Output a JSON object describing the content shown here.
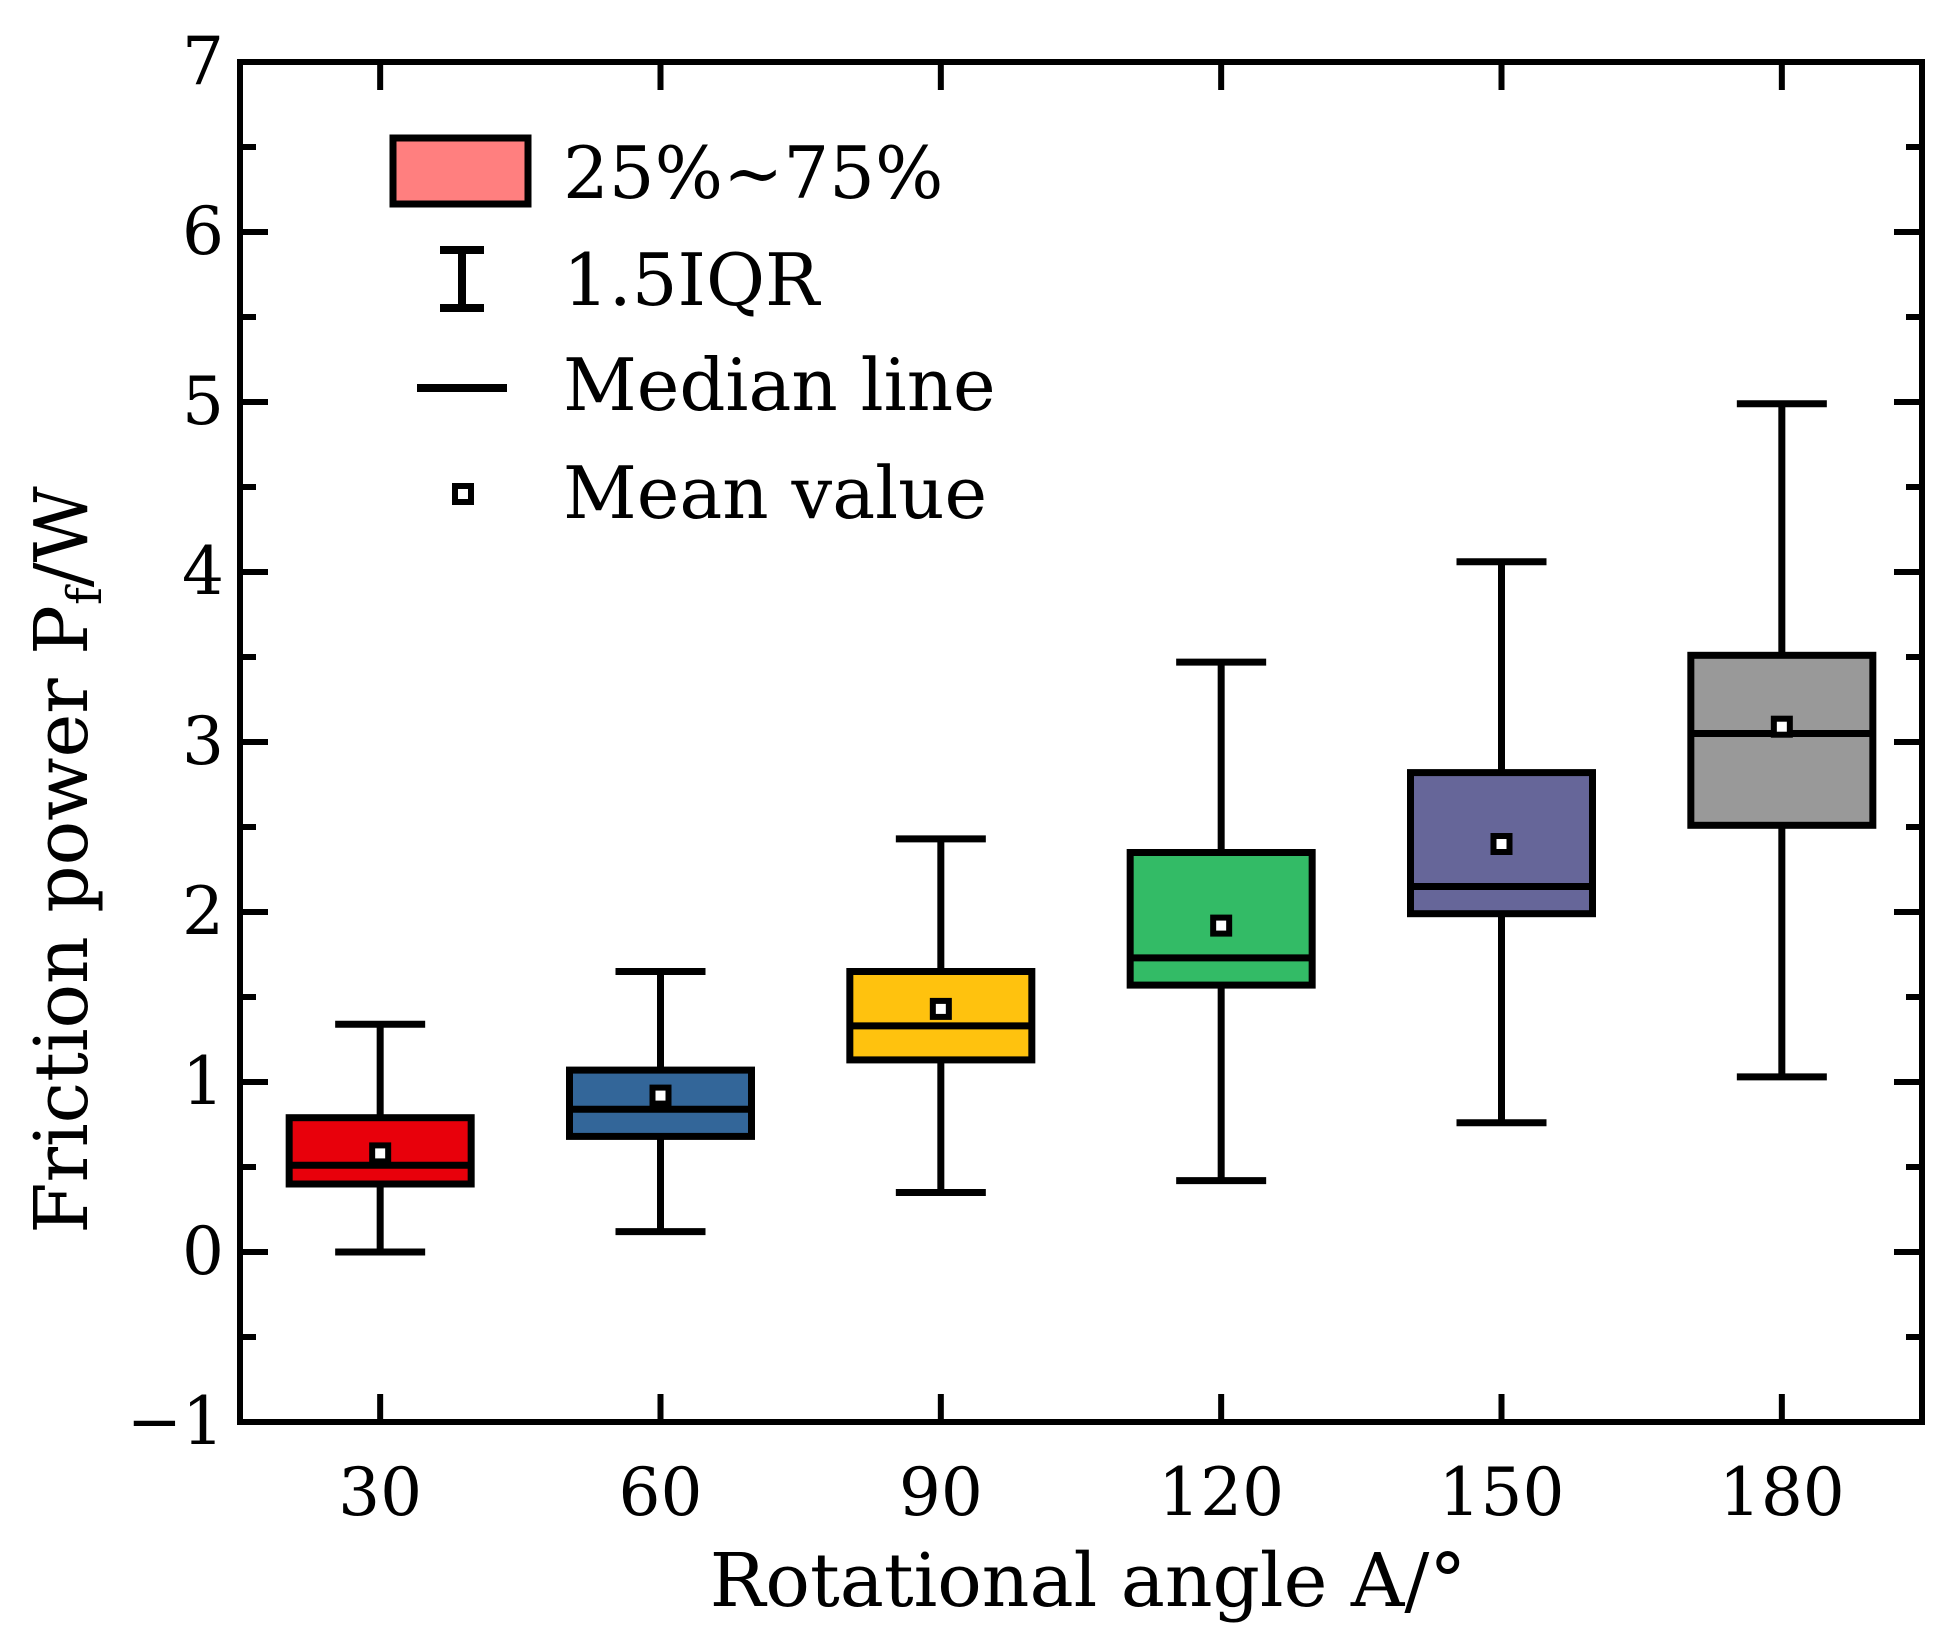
{
  "chart_data": {
    "type": "box",
    "x_ticks": [
      "30",
      "60",
      "90",
      "120",
      "150",
      "180"
    ],
    "y_ticks": [
      "−1",
      "0",
      "1",
      "2",
      "3",
      "4",
      "5",
      "6",
      "7"
    ],
    "xlabel": "Rotational angle A/°",
    "ylabel": {
      "main": "Friction power P",
      "sub": "f",
      "unit": "/W"
    },
    "xlim": [
      15,
      195
    ],
    "ylim": [
      -1,
      7
    ],
    "grid": false,
    "legend_position": "top-left",
    "legend": {
      "box": "25%~75%",
      "whisker": "1.5IQR",
      "median": "Median line",
      "mean": "Mean value"
    },
    "legend_box_color": "#FF7F7F",
    "boxes": [
      {
        "x": 30,
        "whisker_low": 0.0,
        "q1": 0.4,
        "median": 0.51,
        "q3": 0.79,
        "whisker_high": 1.34,
        "mean": 0.58,
        "color": "#E8000B"
      },
      {
        "x": 60,
        "whisker_low": 0.12,
        "q1": 0.68,
        "median": 0.84,
        "q3": 1.07,
        "whisker_high": 1.65,
        "mean": 0.92,
        "color": "#336699"
      },
      {
        "x": 90,
        "whisker_low": 0.35,
        "q1": 1.13,
        "median": 1.33,
        "q3": 1.65,
        "whisker_high": 2.43,
        "mean": 1.43,
        "color": "#FFC20E"
      },
      {
        "x": 120,
        "whisker_low": 0.42,
        "q1": 1.57,
        "median": 1.73,
        "q3": 2.35,
        "whisker_high": 3.47,
        "mean": 1.92,
        "color": "#33BB66"
      },
      {
        "x": 150,
        "whisker_low": 0.76,
        "q1": 1.99,
        "median": 2.15,
        "q3": 2.82,
        "whisker_high": 4.06,
        "mean": 2.4,
        "color": "#666699"
      },
      {
        "x": 180,
        "whisker_low": 1.03,
        "q1": 2.51,
        "median": 3.05,
        "q3": 3.51,
        "whisker_high": 4.99,
        "mean": 3.09,
        "color": "#999999"
      }
    ]
  }
}
